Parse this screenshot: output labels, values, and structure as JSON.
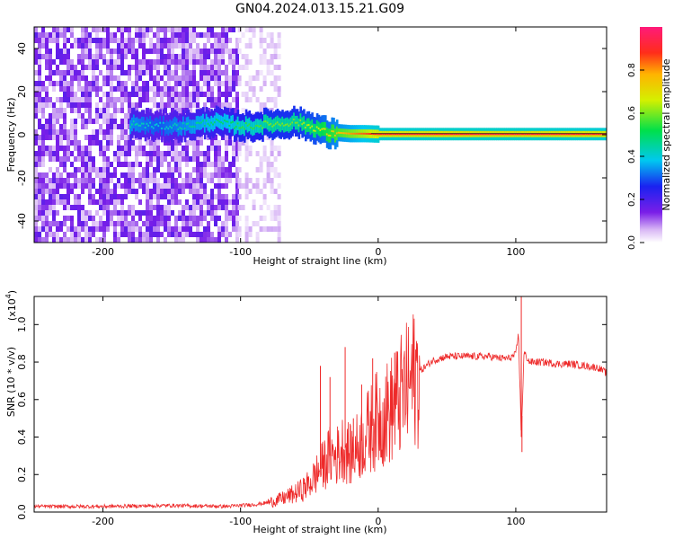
{
  "title": "GN04.2024.013.15.21.G09",
  "colorbar": {
    "label": "Normalized spectral amplitude",
    "ticks": [
      "0.0",
      "0.2",
      "0.4",
      "0.6",
      "0.8"
    ],
    "tick_values": [
      0.0,
      0.2,
      0.4,
      0.6,
      0.8
    ]
  },
  "chart_data": [
    {
      "type": "heatmap",
      "xlabel": "Height of straight line (km)",
      "ylabel": "Frequency (Hz)",
      "xlim": [
        -250,
        166
      ],
      "ylim": [
        -50,
        50
      ],
      "x_ticks": [
        -200,
        -100,
        0,
        100
      ],
      "x_tick_labels": [
        "-200",
        "-100",
        "0",
        "100"
      ],
      "y_ticks": [
        -40,
        -20,
        0,
        20,
        40
      ],
      "y_tick_labels": [
        "-40",
        "-20",
        "0",
        "20",
        "40"
      ],
      "colorscale": "rainbow (purple=0 to red/magenta=1)",
      "noise_region": {
        "x_range": [
          -250,
          -102
        ],
        "amplitude": 0.15
      },
      "faint_noise_region": {
        "x_range": [
          -102,
          -73
        ],
        "amplitude": 0.05
      },
      "signal_track": {
        "x": [
          -180,
          -160,
          -140,
          -120,
          -110,
          -100,
          -90,
          -80,
          -70,
          -60,
          -50,
          -45,
          -40,
          -35,
          -30,
          -20,
          -10,
          0,
          50,
          100,
          166
        ],
        "frequency": [
          5,
          4,
          4,
          6,
          5,
          4,
          4,
          5,
          5,
          6,
          4,
          3,
          2,
          0,
          1,
          0.5,
          0.5,
          0.3,
          0.3,
          0.3,
          0.3
        ],
        "amplitude": [
          0.45,
          0.4,
          0.45,
          0.5,
          0.5,
          0.55,
          0.55,
          0.6,
          0.6,
          0.6,
          0.65,
          0.65,
          0.7,
          0.72,
          0.75,
          0.8,
          0.85,
          0.9,
          0.92,
          0.92,
          0.9
        ]
      }
    },
    {
      "type": "line",
      "xlabel": "Height of straight line (km)",
      "ylabel": "SNR (10 * v/v)",
      "y_multiplier": "(x10",
      "y_multiplier_exp": "4",
      "y_multiplier_close": ")",
      "xlim": [
        -250,
        166
      ],
      "ylim": [
        0,
        1.15
      ],
      "x_ticks": [
        -200,
        -100,
        0,
        100
      ],
      "x_tick_labels": [
        "-200",
        "-100",
        "0",
        "100"
      ],
      "y_ticks": [
        0.0,
        0.2,
        0.4,
        0.6,
        0.8,
        1.0
      ],
      "y_tick_labels": [
        "0.0",
        "0.2",
        "0.4",
        "0.6",
        "0.8",
        "1.0"
      ],
      "series": [
        {
          "color": "#ee2a2a",
          "x": [
            -250,
            -200,
            -150,
            -110,
            -100,
            -90,
            -80,
            -70,
            -60,
            -55,
            -50,
            -45,
            -40,
            -35,
            -30,
            -25,
            -20,
            -15,
            -10,
            -5,
            0,
            5,
            10,
            15,
            20,
            25,
            30,
            40,
            50,
            60,
            70,
            80,
            90,
            95,
            100,
            102,
            104,
            106,
            110,
            120,
            130,
            140,
            150,
            160,
            166
          ],
          "y": [
            0.03,
            0.03,
            0.035,
            0.03,
            0.035,
            0.04,
            0.05,
            0.07,
            0.1,
            0.12,
            0.15,
            0.2,
            0.25,
            0.3,
            0.3,
            0.35,
            0.3,
            0.35,
            0.4,
            0.45,
            0.5,
            0.52,
            0.55,
            0.6,
            0.65,
            0.7,
            0.75,
            0.81,
            0.83,
            0.83,
            0.83,
            0.83,
            0.82,
            0.82,
            0.84,
            0.95,
            0.4,
            0.85,
            0.8,
            0.8,
            0.79,
            0.79,
            0.78,
            0.77,
            0.74
          ]
        }
      ],
      "spikes": [
        {
          "x": -42,
          "y": 0.78
        },
        {
          "x": -35,
          "y": 0.72
        },
        {
          "x": -24,
          "y": 0.88
        },
        {
          "x": -18,
          "y": 0.5
        },
        {
          "x": -12,
          "y": 0.68
        },
        {
          "x": -4,
          "y": 0.82
        },
        {
          "x": 12,
          "y": 0.85
        },
        {
          "x": 104,
          "y": 1.2
        },
        {
          "x": 104.5,
          "y": 0.32
        }
      ]
    }
  ]
}
